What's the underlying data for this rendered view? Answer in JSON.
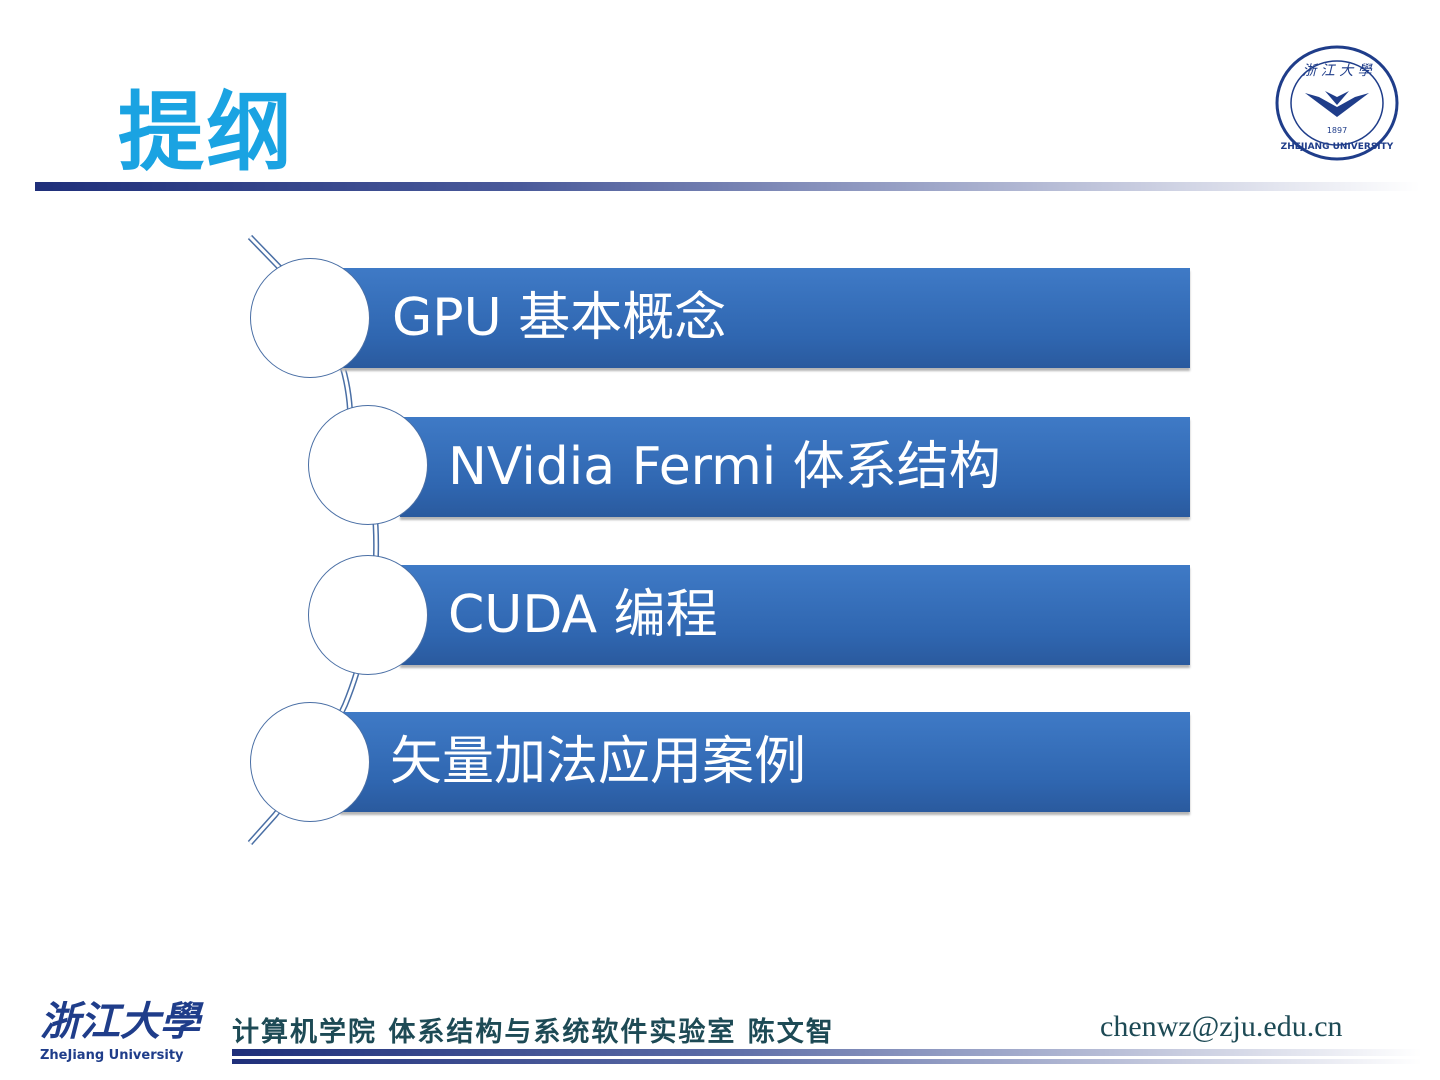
{
  "slide": {
    "title": "提纲",
    "logo_text": "浙江大学 1897 ZHEJIANG UNIVERSITY",
    "items": [
      {
        "label": "GPU 基本概念"
      },
      {
        "label": "NVidia Fermi 体系结构"
      },
      {
        "label": "CUDA 编程"
      },
      {
        "label": "矢量加法应用案例"
      }
    ]
  },
  "footer": {
    "logo_text": "浙江大学 ZheJiang University",
    "logo_sub": "ZheJiang University",
    "text": "计算机学院 体系结构与系统软件实验室 陈文智",
    "email": "chenwz@zju.edu.cn"
  },
  "colors": {
    "title": "#1aa3e2",
    "bar": "#2f66b0",
    "footer_text": "#1d4a55"
  }
}
